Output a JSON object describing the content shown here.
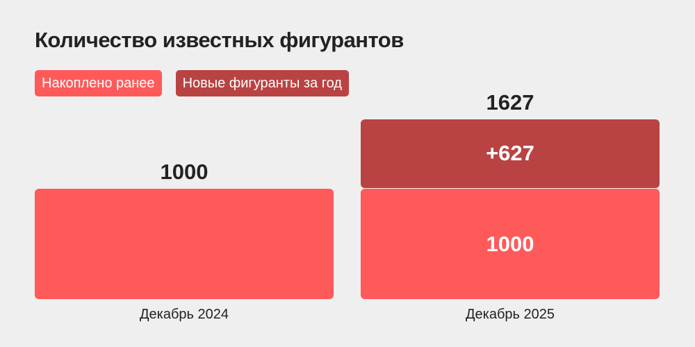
{
  "chart_data": {
    "type": "bar",
    "stacked": true,
    "title": "Количество известных фигурантов",
    "categories": [
      "Декабрь 2024",
      "Декабрь 2025"
    ],
    "series": [
      {
        "name": "Накоплено ранее",
        "color": "#ff5a5a",
        "values": [
          1000,
          1000
        ],
        "labels": [
          "",
          "1000"
        ]
      },
      {
        "name": "Новые фигуранты за год",
        "color": "#b94343",
        "values": [
          0,
          627
        ],
        "labels": [
          "",
          "+627"
        ]
      }
    ],
    "totals": [
      "1000",
      "1627"
    ],
    "legend": "top-left",
    "ylim": [
      0,
      1700
    ]
  }
}
